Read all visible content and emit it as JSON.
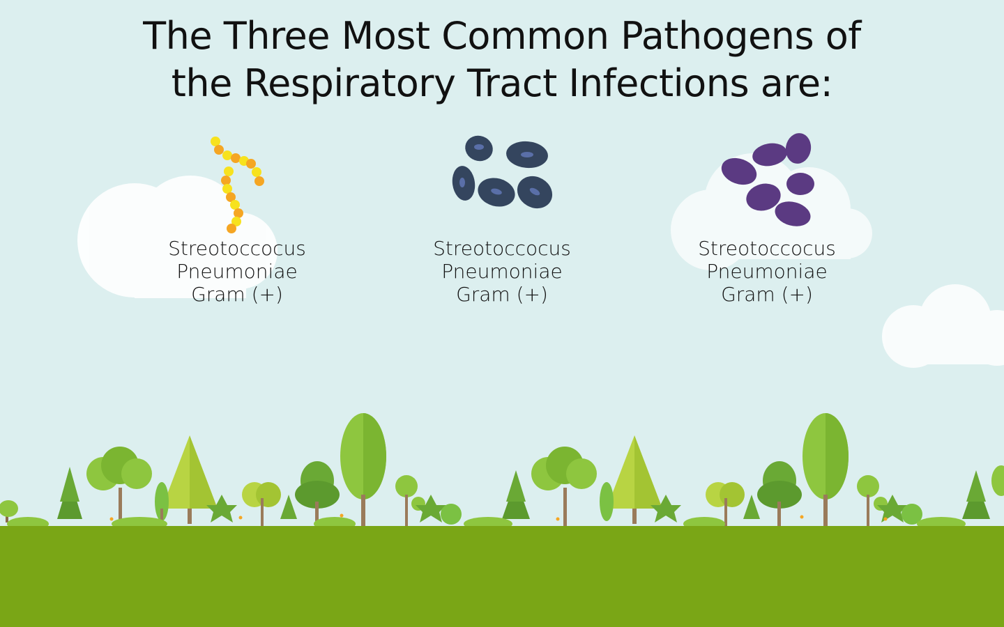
{
  "title": {
    "line1": "The Three Most Common Pathogens of",
    "line2": "the Respiratory Tract Infections are:"
  },
  "pathogens": [
    {
      "name_line1": "Streotoccocus",
      "name_line2": "Pneumoniae",
      "gram": "Gram (+)",
      "icon": "streptococcus-chain-icon",
      "color": "#f7d51e"
    },
    {
      "name_line1": "Streotoccocus",
      "name_line2": "Pneumoniae",
      "gram": "Gram (+)",
      "icon": "bacilli-cluster-icon",
      "color": "#34455e"
    },
    {
      "name_line1": "Streotoccocus",
      "name_line2": "Pneumoniae",
      "gram": "Gram (+)",
      "icon": "cocci-cluster-icon",
      "color": "#5b3a82"
    }
  ],
  "colors": {
    "sky": "#dcefef",
    "ground": "#7aa616",
    "cloud": "#ffffff"
  }
}
